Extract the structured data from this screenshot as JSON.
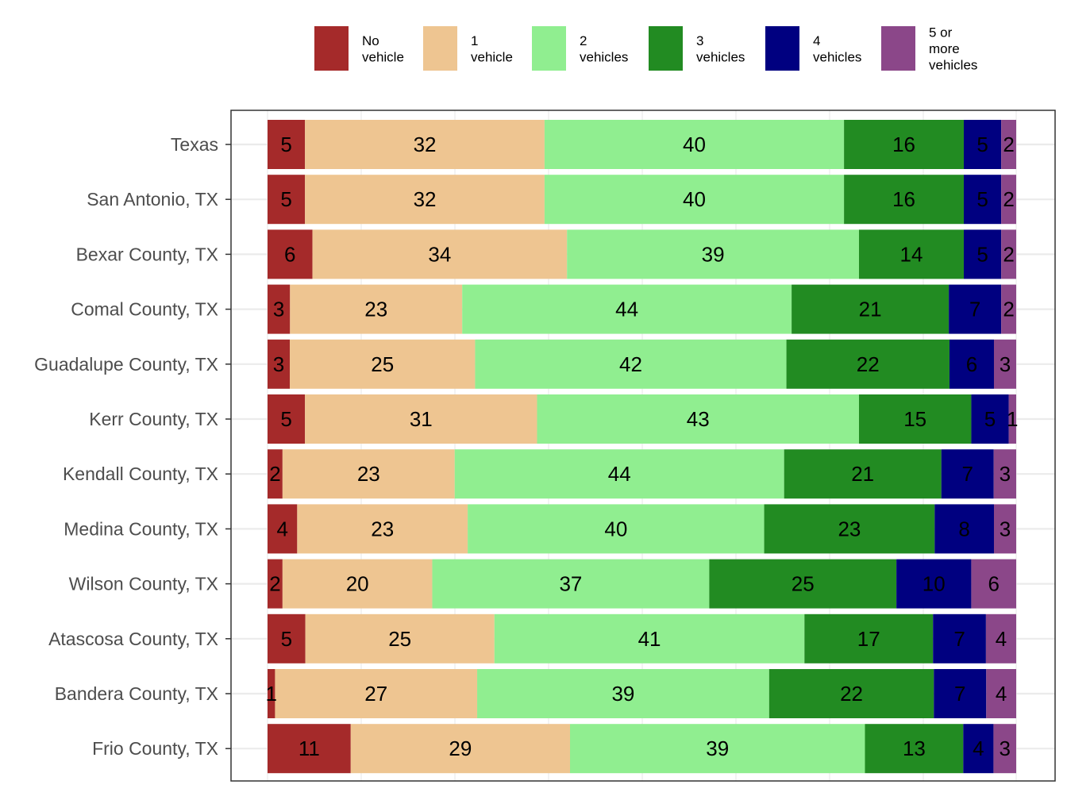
{
  "chart_data": {
    "type": "bar",
    "orientation": "horizontal",
    "stacked": true,
    "categories": [
      "Texas",
      "San Antonio, TX",
      "Bexar County, TX",
      "Comal County, TX",
      "Guadalupe County, TX",
      "Kerr County, TX",
      "Kendall County, TX",
      "Medina County, TX",
      "Wilson County, TX",
      "Atascosa County, TX",
      "Bandera County, TX",
      "Frio County, TX"
    ],
    "series": [
      {
        "name": "No vehicle",
        "legend_lines": [
          "No",
          "vehicle"
        ],
        "color": "#a52a2a",
        "values": [
          5,
          5,
          6,
          3,
          3,
          5,
          2,
          4,
          2,
          5,
          1,
          11
        ]
      },
      {
        "name": "1 vehicle",
        "legend_lines": [
          "1",
          "vehicle"
        ],
        "color": "#eec591",
        "values": [
          32,
          32,
          34,
          23,
          25,
          31,
          23,
          23,
          20,
          25,
          27,
          29
        ]
      },
      {
        "name": "2 vehicles",
        "legend_lines": [
          "2",
          "vehicles"
        ],
        "color": "#90ee90",
        "values": [
          40,
          40,
          39,
          44,
          42,
          43,
          44,
          40,
          37,
          41,
          39,
          39
        ]
      },
      {
        "name": "3 vehicles",
        "legend_lines": [
          "3",
          "vehicles"
        ],
        "color": "#228b22",
        "values": [
          16,
          16,
          14,
          21,
          22,
          15,
          21,
          23,
          25,
          17,
          22,
          13
        ]
      },
      {
        "name": "4 vehicles",
        "legend_lines": [
          "4",
          "vehicles"
        ],
        "color": "#000080",
        "values": [
          5,
          5,
          5,
          7,
          6,
          5,
          7,
          8,
          10,
          7,
          7,
          4
        ]
      },
      {
        "name": "5 or more vehicles",
        "legend_lines": [
          "5 or",
          "more",
          "vehicles"
        ],
        "color": "#8b4789",
        "values": [
          2,
          2,
          2,
          2,
          3,
          1,
          3,
          3,
          6,
          4,
          4,
          3
        ]
      }
    ],
    "title": "",
    "xlabel": "",
    "ylabel": "",
    "legend_position": "top",
    "grid": true,
    "data_labels": true
  }
}
